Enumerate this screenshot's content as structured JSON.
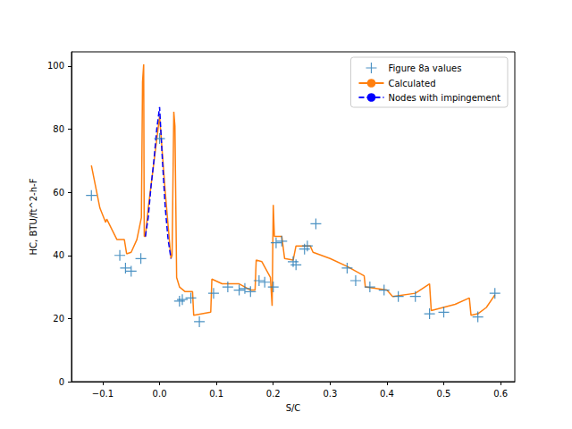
{
  "chart_data": {
    "type": "line",
    "x_label": "S/C",
    "y_label": "HC, BTU/ft^2-h-F",
    "xlim": [
      -0.155,
      0.625
    ],
    "ylim": [
      0,
      104.5
    ],
    "xticks": [
      {
        "value": -0.1,
        "label": "−0.1"
      },
      {
        "value": 0,
        "label": "0.0"
      },
      {
        "value": 0.1,
        "label": "0.1"
      },
      {
        "value": 0.2,
        "label": "0.2"
      },
      {
        "value": 0.3,
        "label": "0.3"
      },
      {
        "value": 0.4,
        "label": "0.4"
      },
      {
        "value": 0.5,
        "label": "0.5"
      },
      {
        "value": 0.6,
        "label": "0.6"
      }
    ],
    "yticks": [
      0,
      20,
      40,
      60,
      80,
      100
    ],
    "grid": false,
    "legend": "upper right",
    "series": [
      {
        "name": "Figure 8a values",
        "type": "scatter",
        "marker": "plus",
        "color": "#1f77b4",
        "x": [
          -0.12,
          -0.07,
          -0.06,
          -0.05,
          -0.033,
          0.0,
          0.035,
          0.04,
          0.055,
          0.07,
          0.095,
          0.12,
          0.14,
          0.15,
          0.16,
          0.175,
          0.185,
          0.2,
          0.205,
          0.215,
          0.235,
          0.24,
          0.255,
          0.26,
          0.275,
          0.33,
          0.345,
          0.37,
          0.395,
          0.42,
          0.45,
          0.475,
          0.5,
          0.56,
          0.59
        ],
        "values": [
          59,
          40,
          36,
          35,
          39,
          77,
          25.5,
          26,
          26.5,
          19,
          28,
          30,
          29,
          29.5,
          28.5,
          32,
          31.5,
          30,
          44,
          44.5,
          38,
          37,
          42,
          43,
          50,
          36,
          32,
          30,
          29,
          27,
          27,
          21.5,
          22,
          20.5,
          28
        ]
      },
      {
        "name": "Calculated",
        "type": "line",
        "line_style": "solid",
        "color": "#ff7f0e",
        "x": [
          -0.12,
          -0.105,
          -0.095,
          -0.093,
          -0.075,
          -0.062,
          -0.058,
          -0.05,
          -0.04,
          -0.032,
          -0.03,
          -0.028,
          -0.027,
          -0.025,
          -0.02,
          0.0,
          0.01,
          0.02,
          0.022,
          0.025,
          0.027,
          0.03,
          0.035,
          0.045,
          0.058,
          0.06,
          0.09,
          0.092,
          0.11,
          0.14,
          0.16,
          0.168,
          0.17,
          0.18,
          0.195,
          0.198,
          0.2,
          0.202,
          0.215,
          0.22,
          0.235,
          0.24,
          0.265,
          0.27,
          0.3,
          0.33,
          0.36,
          0.362,
          0.4,
          0.41,
          0.45,
          0.475,
          0.478,
          0.52,
          0.545,
          0.548,
          0.56,
          0.575,
          0.59
        ],
        "values": [
          68.5,
          55,
          50.5,
          51.5,
          45,
          45,
          40.5,
          41,
          45,
          52,
          95,
          100.5,
          46,
          46,
          55,
          84,
          60,
          39,
          40,
          85.5,
          81,
          33,
          30,
          28.5,
          28.5,
          21,
          22,
          32.5,
          31,
          31,
          29,
          29,
          38.5,
          38,
          33,
          24,
          56,
          46,
          46,
          39,
          38.5,
          43,
          43,
          41,
          39,
          36.5,
          33.5,
          30,
          29,
          27,
          28,
          31,
          22.5,
          24.5,
          26.5,
          21,
          21.5,
          23.5,
          27.5
        ]
      },
      {
        "name": "Nodes with impingement",
        "type": "line",
        "line_style": "dashed",
        "color": "#0000ff",
        "x": [
          -0.025,
          -0.02,
          -0.015,
          -0.01,
          -0.005,
          0.0,
          0.005,
          0.01,
          0.015,
          0.02
        ],
        "values": [
          46,
          52,
          62,
          70,
          80,
          87,
          70,
          55,
          45,
          39
        ]
      }
    ]
  }
}
